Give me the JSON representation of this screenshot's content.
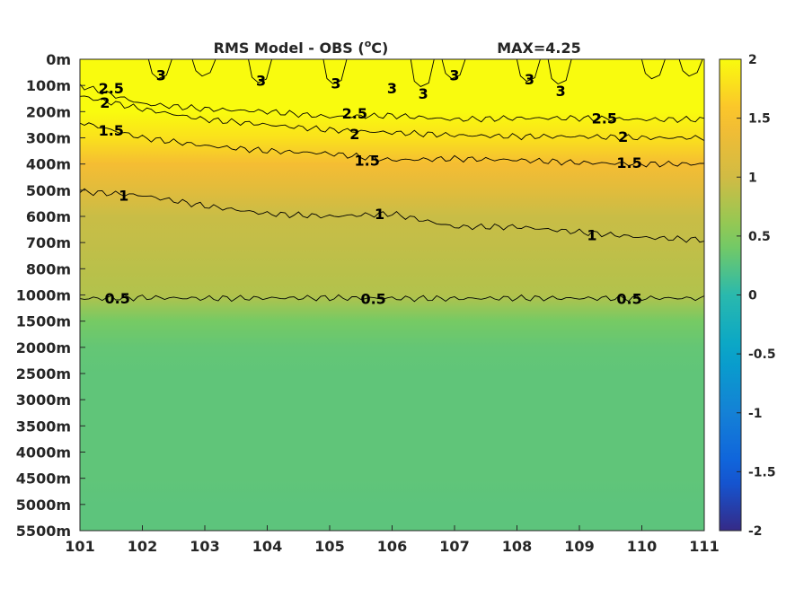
{
  "chart_data": {
    "type": "heatmap",
    "title": "RMS Model - OBS (°C)",
    "title_parts": {
      "main": "RMS Model - OBS (",
      "superscript": "o",
      "tail": "C)"
    },
    "max_label": "MAX=4.25",
    "x_ticks": [
      "101",
      "102",
      "103",
      "104",
      "105",
      "106",
      "107",
      "108",
      "109",
      "110",
      "111"
    ],
    "xlim": [
      101,
      111
    ],
    "y_ticks": [
      "0m",
      "100m",
      "200m",
      "300m",
      "400m",
      "500m",
      "600m",
      "700m",
      "800m",
      "1000m",
      "1500m",
      "2000m",
      "2500m",
      "3000m",
      "3500m",
      "4000m",
      "4500m",
      "5000m",
      "5500m"
    ],
    "colorbar": {
      "ticks": [
        "2",
        "1.5",
        "1",
        "0.5",
        "0",
        "-0.5",
        "-1",
        "-1.5",
        "-2"
      ],
      "range": [
        -2,
        2
      ],
      "colormap": "parula"
    },
    "depth_levels": [
      0,
      100,
      200,
      300,
      400,
      500,
      600,
      700,
      800,
      1000,
      1500,
      2000,
      2500,
      3000,
      3500,
      4000,
      4500,
      5000,
      5500
    ],
    "mean_profile": [
      3.0,
      2.9,
      2.3,
      1.8,
      1.45,
      1.2,
      0.95,
      0.9,
      0.85,
      0.8,
      0.42,
      0.32,
      0.3,
      0.3,
      0.3,
      0.3,
      0.3,
      0.28,
      0.28
    ],
    "contours": [
      {
        "level": "0.5",
        "value": 0.5,
        "depth": [
          1070,
          1050,
          1065,
          1060,
          1055,
          1065,
          1070,
          1060,
          1065,
          1060,
          1065
        ]
      },
      {
        "level": "1",
        "value": 1,
        "depth": [
          505,
          520,
          560,
          590,
          600,
          590,
          640,
          640,
          660,
          680,
          690
        ]
      },
      {
        "level": "1.5",
        "value": 1.5,
        "depth": [
          240,
          300,
          330,
          350,
          360,
          385,
          380,
          385,
          395,
          400,
          400
        ]
      },
      {
        "level": "2",
        "value": 2,
        "depth": [
          140,
          190,
          230,
          250,
          270,
          280,
          290,
          295,
          295,
          300,
          300
        ]
      },
      {
        "level": "2.5",
        "value": 2.5,
        "depth": [
          100,
          170,
          190,
          200,
          220,
          215,
          230,
          225,
          225,
          230,
          230
        ]
      }
    ],
    "contour_labels": [
      {
        "text": "2.5",
        "x": 101.5,
        "depth": 110
      },
      {
        "text": "2",
        "x": 101.4,
        "depth": 165
      },
      {
        "text": "1.5",
        "x": 101.5,
        "depth": 270
      },
      {
        "text": "1",
        "x": 101.7,
        "depth": 520
      },
      {
        "text": "0.5",
        "x": 101.6,
        "depth": 1060
      },
      {
        "text": "2.5",
        "x": 105.4,
        "depth": 205
      },
      {
        "text": "2",
        "x": 105.4,
        "depth": 285
      },
      {
        "text": "1.5",
        "x": 105.6,
        "depth": 385
      },
      {
        "text": "1",
        "x": 105.8,
        "depth": 590
      },
      {
        "text": "0.5",
        "x": 105.7,
        "depth": 1070
      },
      {
        "text": "2.5",
        "x": 109.4,
        "depth": 225
      },
      {
        "text": "2",
        "x": 109.7,
        "depth": 295
      },
      {
        "text": "1.5",
        "x": 109.8,
        "depth": 395
      },
      {
        "text": "1",
        "x": 109.2,
        "depth": 670
      },
      {
        "text": "0.5",
        "x": 109.8,
        "depth": 1070
      },
      {
        "text": "3",
        "x": 102.3,
        "depth": 60
      },
      {
        "text": "3",
        "x": 103.9,
        "depth": 80
      },
      {
        "text": "3",
        "x": 105.1,
        "depth": 90
      },
      {
        "text": "3",
        "x": 106.0,
        "depth": 110
      },
      {
        "text": "3",
        "x": 106.5,
        "depth": 130
      },
      {
        "text": "3",
        "x": 107.0,
        "depth": 60
      },
      {
        "text": "3",
        "x": 108.2,
        "depth": 75
      },
      {
        "text": "3",
        "x": 108.7,
        "depth": 120
      }
    ]
  }
}
